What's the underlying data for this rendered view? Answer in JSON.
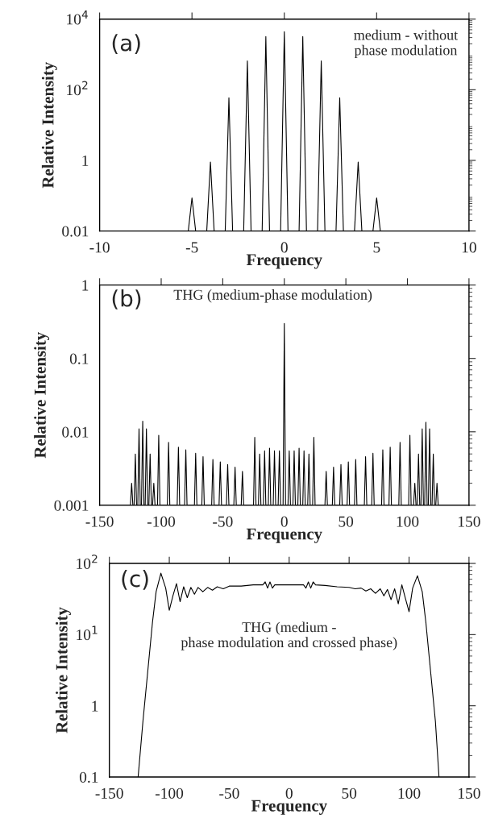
{
  "chart_data": [
    {
      "type": "line",
      "xlabel": "Frequency",
      "ylabel": "Relative Intensity",
      "log": "y",
      "xlim": [
        -10,
        10
      ],
      "xticks": [
        -10,
        -5,
        0,
        5,
        10
      ],
      "ylim": [
        0.01,
        10000
      ],
      "yticks": [
        0.01,
        1,
        {
          "value": 100,
          "label": "10$^{2}$"
        },
        {
          "value": 10000,
          "label": "10$^{4}$"
        }
      ],
      "grid": false,
      "legend": false,
      "annotations": [
        "(a)",
        "medium - without\nphase modulation"
      ],
      "series": [
        {
          "color": "#000000",
          "x": [
            -10,
            -5.2,
            -5,
            -4.8,
            -4.2,
            -4,
            -3.8,
            -3.2,
            -3,
            -2.8,
            -2.2,
            -2,
            -1.8,
            -1.2,
            -1,
            -0.8,
            -0.2,
            0,
            0.2,
            0.8,
            1,
            1.2,
            1.8,
            2,
            2.2,
            2.8,
            3,
            3.2,
            3.8,
            4,
            4.2,
            4.8,
            5,
            5.2,
            10
          ],
          "values": [
            0.01,
            0.01,
            0.087,
            0.01,
            0.01,
            0.9,
            0.01,
            0.01,
            59,
            0.01,
            0.01,
            660,
            0.01,
            0.01,
            3200,
            0.01,
            0.01,
            4400,
            0.01,
            0.01,
            3200,
            0.01,
            0.01,
            660,
            0.01,
            0.01,
            59,
            0.01,
            0.01,
            0.9,
            0.01,
            0.01,
            0.087,
            0.01,
            0.01
          ]
        }
      ]
    },
    {
      "type": "line",
      "xlabel": "Frequency",
      "ylabel": "Relative Intensity",
      "log": "y",
      "xlim": [
        -150,
        150
      ],
      "xticks": [
        -150,
        -100,
        -50,
        0,
        50,
        100,
        150
      ],
      "ylim": [
        0.001,
        1
      ],
      "yticks": [
        0.001,
        0.01,
        0.1,
        1
      ],
      "grid": false,
      "legend": false,
      "annotations": [
        "(b)",
        "THG (medium-phase modulation)"
      ],
      "series": [
        {
          "color": "#000000",
          "x": [
            -150,
            -125,
            -124,
            -123,
            -122,
            -121,
            -120,
            -119,
            -118,
            -117,
            -116,
            -115,
            -114,
            -113,
            -112,
            -111,
            -110,
            -109,
            -108,
            -107,
            -106,
            -105,
            -103,
            -102,
            -101,
            -95,
            -94,
            -93,
            -87,
            -86,
            -85,
            -81,
            -80,
            -79,
            -73,
            -72,
            -71,
            -67,
            -66,
            -65,
            -59,
            -58,
            -57,
            -53,
            -52,
            -51,
            -47,
            -46,
            -45,
            -41,
            -40,
            -39,
            -35,
            -34,
            -33,
            -25,
            -24,
            -23,
            -21,
            -20,
            -19,
            -17,
            -16,
            -15,
            -13,
            -12,
            -11,
            -9,
            -8,
            -7,
            -5,
            -4,
            -3,
            -1,
            0,
            1,
            3,
            4,
            5,
            7,
            8,
            9,
            11,
            12,
            13,
            15,
            16,
            17,
            19,
            20,
            21,
            23,
            24,
            25,
            33,
            34,
            35,
            39,
            40,
            41,
            45,
            46,
            47,
            51,
            52,
            53,
            57,
            58,
            59,
            65,
            66,
            67,
            71,
            72,
            73,
            79,
            80,
            81,
            85,
            86,
            87,
            93,
            94,
            95,
            101,
            102,
            103,
            105,
            106,
            107,
            108,
            109,
            110,
            111,
            112,
            113,
            114,
            115,
            116,
            117,
            118,
            119,
            120,
            121,
            122,
            123,
            124,
            125,
            150
          ],
          "values": [
            0.001,
            0.001,
            0.002,
            0.001,
            0.001,
            0.005,
            0.001,
            0.001,
            0.011,
            0.001,
            0.001,
            0.014,
            0.001,
            0.001,
            0.011,
            0.001,
            0.001,
            0.005,
            0.001,
            0.001,
            0.002,
            0.001,
            0.001,
            0.009,
            0.001,
            0.001,
            0.0072,
            0.001,
            0.001,
            0.0062,
            0.001,
            0.001,
            0.0057,
            0.001,
            0.001,
            0.0051,
            0.001,
            0.001,
            0.0046,
            0.001,
            0.001,
            0.0042,
            0.001,
            0.001,
            0.0039,
            0.001,
            0.001,
            0.0036,
            0.001,
            0.001,
            0.0033,
            0.001,
            0.001,
            0.0029,
            0.001,
            0.001,
            0.0084,
            0.001,
            0.001,
            0.005,
            0.001,
            0.001,
            0.0055,
            0.001,
            0.001,
            0.006,
            0.001,
            0.001,
            0.0055,
            0.001,
            0.001,
            0.0055,
            0.001,
            0.001,
            0.3,
            0.001,
            0.001,
            0.0055,
            0.001,
            0.001,
            0.0055,
            0.001,
            0.001,
            0.006,
            0.001,
            0.001,
            0.0055,
            0.001,
            0.001,
            0.005,
            0.001,
            0.001,
            0.0084,
            0.001,
            0.001,
            0.0029,
            0.001,
            0.001,
            0.0033,
            0.001,
            0.001,
            0.0036,
            0.001,
            0.001,
            0.0039,
            0.001,
            0.001,
            0.0042,
            0.001,
            0.001,
            0.0046,
            0.001,
            0.001,
            0.0051,
            0.001,
            0.001,
            0.0057,
            0.001,
            0.001,
            0.0062,
            0.001,
            0.001,
            0.0072,
            0.001,
            0.001,
            0.009,
            0.001,
            0.001,
            0.002,
            0.001,
            0.001,
            0.005,
            0.001,
            0.001,
            0.011,
            0.001,
            0.001,
            0.0135,
            0.001,
            0.001,
            0.011,
            0.001,
            0.001,
            0.005,
            0.001,
            0.001,
            0.002,
            0.001,
            0.001
          ]
        }
      ]
    },
    {
      "type": "line",
      "xlabel": "Frequency",
      "ylabel": "Relative Intensity",
      "log": "y",
      "xlim": [
        -150,
        150
      ],
      "xticks": [
        -150,
        -100,
        -50,
        0,
        50,
        100,
        150
      ],
      "ylim": [
        0.1,
        100
      ],
      "yticks": [
        0.1,
        1,
        {
          "value": 10,
          "label": "10$^{1}$"
        },
        {
          "value": 100,
          "label": "10$^{2}$"
        }
      ],
      "grid": false,
      "legend": false,
      "annotations": [
        "(c)",
        "THG (medium -\nphase modulation and crossed phase)"
      ],
      "series": [
        {
          "color": "#000000",
          "x": [
            -126,
            -122,
            -118,
            -114,
            -111,
            -107,
            -103,
            -100,
            -97,
            -94,
            -91,
            -88,
            -85,
            -82,
            -79,
            -76,
            -72,
            -68,
            -64,
            -60,
            -55,
            -50,
            -40,
            -30,
            -22,
            -20,
            -18,
            -16,
            -14,
            -12,
            0,
            12,
            14,
            16,
            18,
            20,
            22,
            30,
            40,
            50,
            55,
            60,
            64,
            68,
            72,
            76,
            79,
            82,
            85,
            88,
            91,
            94,
            97,
            100,
            103,
            107,
            111,
            114,
            118,
            122,
            125
          ],
          "values": [
            0.1,
            0.6,
            3,
            15,
            40,
            73,
            45,
            22,
            35,
            52,
            29,
            47,
            33,
            46,
            37,
            46,
            40,
            46,
            42,
            47,
            44,
            48,
            48,
            50,
            50,
            55,
            45,
            55,
            45,
            50,
            50,
            50,
            45,
            55,
            45,
            55,
            50,
            49,
            47,
            46,
            44,
            45,
            41,
            44,
            38,
            44,
            35,
            43,
            31,
            44,
            27,
            50,
            32,
            21,
            45,
            67,
            40,
            15,
            3,
            0.6,
            0.1
          ]
        }
      ]
    }
  ]
}
